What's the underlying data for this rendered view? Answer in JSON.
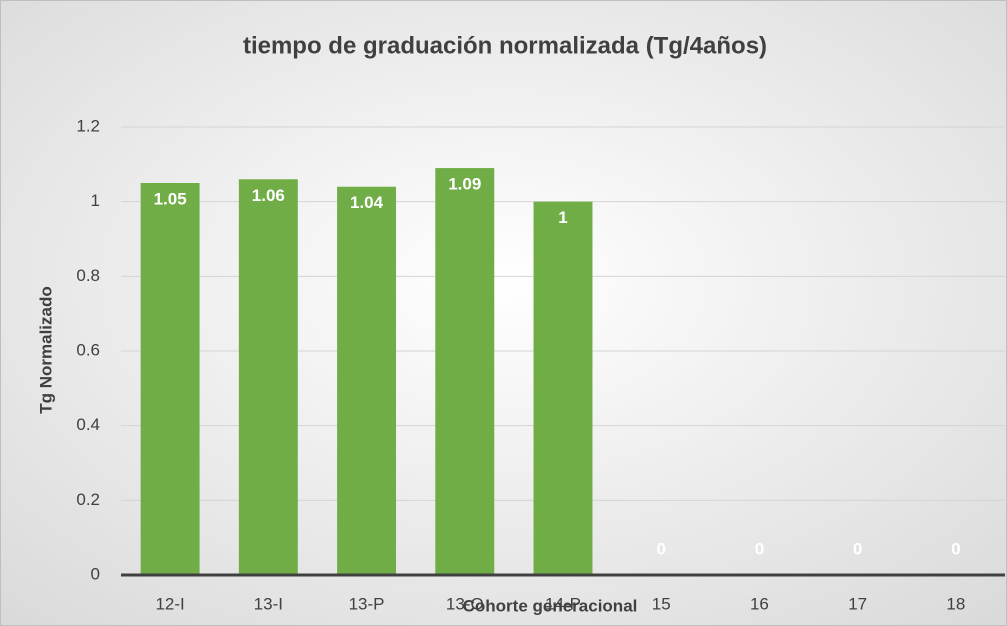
{
  "chart_data": {
    "type": "bar",
    "title": "tiempo de graduación normalizada (Tg/4años)",
    "x_label": "Cohorte generacional",
    "y_label": "Tg Normalizado",
    "categories": [
      "12-I",
      "13-I",
      "13-P",
      "13-O",
      "14-P",
      "15",
      "16",
      "17",
      "18"
    ],
    "values": [
      1.05,
      1.06,
      1.04,
      1.09,
      1,
      0,
      0,
      0,
      0
    ],
    "color": "#70ad47",
    "ylim": [
      0,
      1.2
    ],
    "yticks": [
      0,
      0.2,
      0.4,
      0.6,
      0.8,
      1,
      1.2
    ],
    "grid": true
  }
}
